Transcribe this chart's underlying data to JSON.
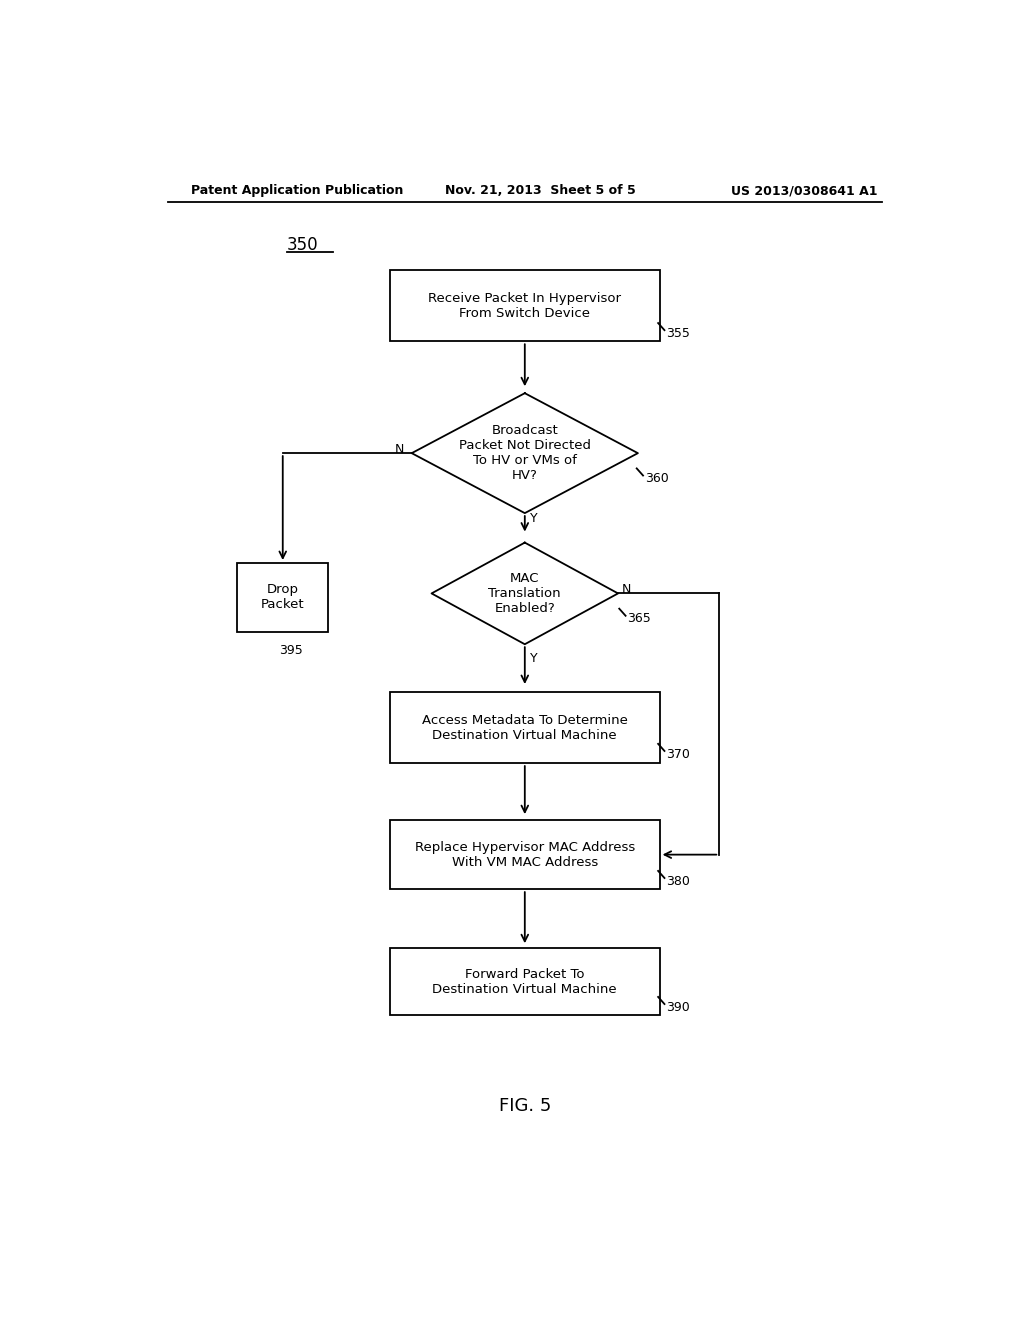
{
  "header_left": "Patent Application Publication",
  "header_mid": "Nov. 21, 2013  Sheet 5 of 5",
  "header_right": "US 2013/0308641 A1",
  "fig_label": "FIG. 5",
  "diagram_label": "350",
  "background": "#ffffff",
  "font_size_box": 9.5,
  "font_size_header": 9,
  "font_size_tag": 9,
  "font_size_label": 12,
  "font_size_fig": 13
}
